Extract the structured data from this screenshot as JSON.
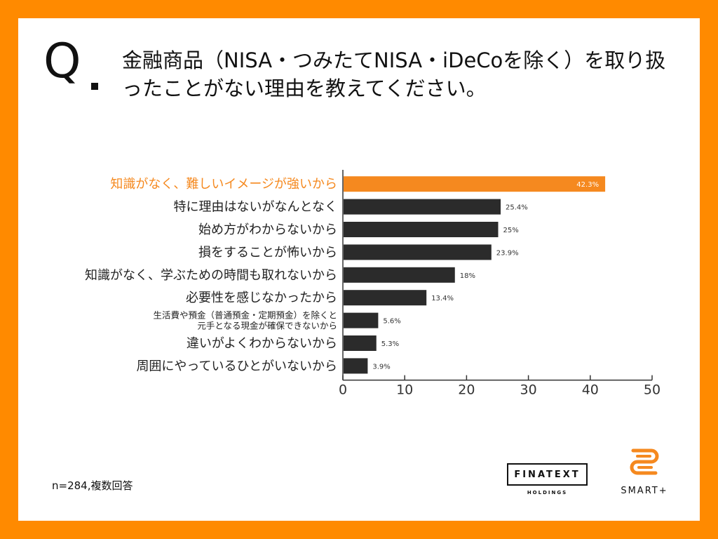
{
  "question": {
    "mark": "Q",
    "text": "金融商品（NISA・つみたてNISA・iDeCoを除く）を取り扱ったことがない理由を教えてください。"
  },
  "chart_data": {
    "type": "bar",
    "orientation": "horizontal",
    "categories": [
      "知識がなく、難しいイメージが強いから",
      "特に理由はないがなんとなく",
      "始め方がわからないから",
      "損をすることが怖いから",
      "知識がなく、学ぶための時間も取れないから",
      "必要性を感じなかったから",
      "生活費や預金（普通預金・定期預金）を除くと\n元手となる現金が確保できないから",
      "違いがよくわからないから",
      "周囲にやっているひとがいないから"
    ],
    "values": [
      42.3,
      25.4,
      25,
      23.9,
      18,
      13.4,
      5.6,
      5.3,
      3.9
    ],
    "value_labels": [
      "42.3%",
      "25.4%",
      "25%",
      "23.9%",
      "18%",
      "13.4%",
      "5.6%",
      "5.3%",
      "3.9%"
    ],
    "highlight_index": 0,
    "xlim": [
      0,
      50
    ],
    "xticks": [
      0,
      10,
      20,
      30,
      40,
      50
    ],
    "colors": {
      "highlight": "#f5891f",
      "default": "#2b2b2b",
      "axis": "#333333"
    }
  },
  "footnote": "n=284,複数回答",
  "logos": {
    "finatext": {
      "name": "FINATEXT",
      "sub": "HOLDINGS"
    },
    "smart": {
      "name": "SMART+"
    }
  },
  "colors": {
    "frame": "#ff8a00",
    "accent": "#f5891f"
  }
}
